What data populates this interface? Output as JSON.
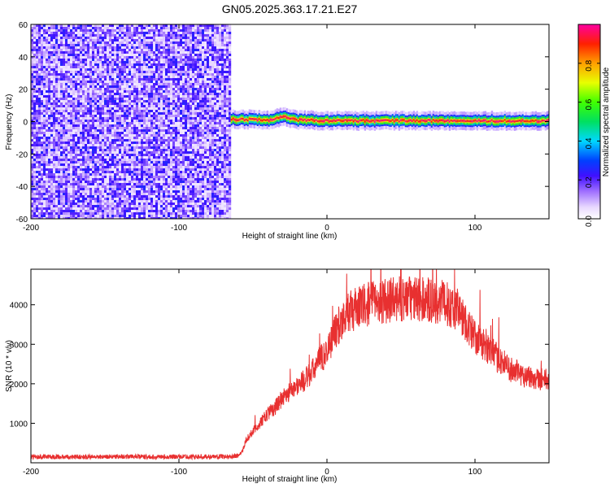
{
  "title": "GN05.2025.363.17.21.E27",
  "chart_data": [
    {
      "type": "heatmap",
      "title": "GN05.2025.363.17.21.E27",
      "xlabel": "Height of straight line (km)",
      "ylabel": "Frequency (Hz)",
      "xlim": [
        -200,
        150
      ],
      "ylim": [
        -60,
        60
      ],
      "x_ticks": [
        "-200",
        "-100",
        "0",
        "100"
      ],
      "y_ticks": [
        "60",
        "40",
        "20",
        "0",
        "-20",
        "-40",
        "-60"
      ],
      "colorbar": {
        "label": "Normalized spectral amplitude",
        "range": [
          0,
          1
        ],
        "ticks": [
          "0.0",
          "0.2",
          "0.4",
          "0.6",
          "0.8"
        ]
      },
      "regions": [
        {
          "x_range": [
            -200,
            -65
          ],
          "description": "broadband noise, amplitude 0.0-0.3 across all frequencies"
        },
        {
          "x_range": [
            -65,
            150
          ],
          "center_frequency_hz": 0.5,
          "bandwidth_hz": 6,
          "peak_amplitude": 1.0
        }
      ],
      "ridge_frequency": [
        {
          "x": -65,
          "y": 1.5
        },
        {
          "x": -40,
          "y": 1
        },
        {
          "x": -30,
          "y": 3
        },
        {
          "x": -20,
          "y": 1
        },
        {
          "x": 0,
          "y": 0.5
        },
        {
          "x": 50,
          "y": 0.5
        },
        {
          "x": 150,
          "y": 0.5
        }
      ]
    },
    {
      "type": "line",
      "xlabel": "Height of straight line (km)",
      "ylabel": "SNR (10 * v/v)",
      "xlim": [
        -200,
        150
      ],
      "ylim": [
        0,
        4900
      ],
      "x_ticks": [
        "-200",
        "-100",
        "0",
        "100"
      ],
      "y_ticks": [
        "1000",
        "2000",
        "3000",
        "4000"
      ],
      "color": "#e83030",
      "series": [
        {
          "x": [
            -200,
            -180,
            -160,
            -140,
            -120,
            -100,
            -80,
            -65,
            -60,
            -57,
            -55,
            -50,
            -45,
            -40,
            -35,
            -30,
            -25,
            -20,
            -15,
            -10,
            -5,
            0,
            5,
            10,
            15,
            20,
            30,
            40,
            50,
            60,
            70,
            80,
            90,
            95,
            100,
            105,
            110,
            115,
            120,
            125,
            130,
            140,
            150
          ],
          "values": [
            150,
            150,
            150,
            160,
            150,
            155,
            150,
            160,
            180,
            300,
            550,
            800,
            1000,
            1250,
            1400,
            1650,
            1800,
            1950,
            2100,
            2300,
            2600,
            2800,
            3300,
            3600,
            3800,
            3900,
            4050,
            4100,
            4150,
            4150,
            4100,
            4050,
            3800,
            3450,
            3200,
            3000,
            2850,
            2650,
            2500,
            2350,
            2250,
            2150,
            2100
          ]
        }
      ]
    }
  ]
}
